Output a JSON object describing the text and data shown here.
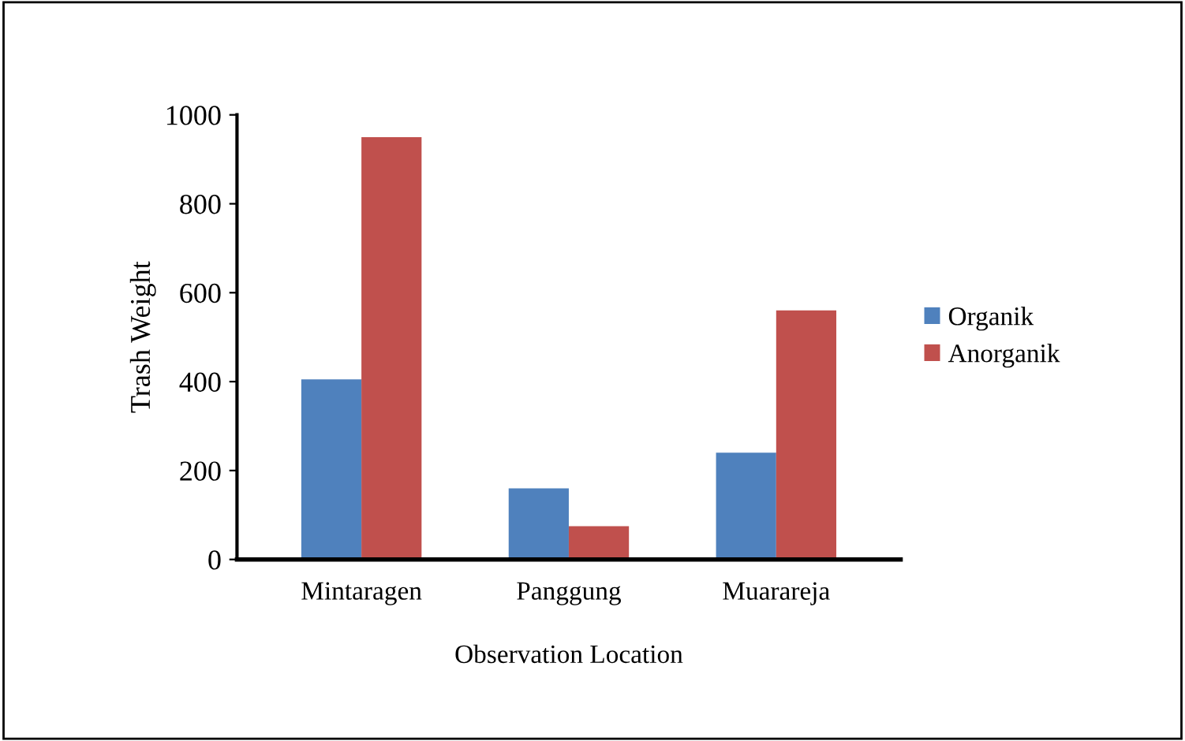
{
  "chart_data": {
    "type": "bar",
    "xlabel": "Observation Location",
    "ylabel": "Trash Weight",
    "categories": [
      "Mintaragen",
      "Panggung",
      "Muarareja"
    ],
    "series": [
      {
        "name": "Organik",
        "color": "#4f81bd",
        "values": [
          405,
          160,
          240
        ]
      },
      {
        "name": "Anorganik",
        "color": "#c0504d",
        "values": [
          950,
          75,
          560
        ]
      }
    ],
    "ylim": [
      0,
      1000
    ],
    "yticks": [
      0,
      200,
      400,
      600,
      800,
      1000
    ],
    "grid": false,
    "legend": "right"
  }
}
